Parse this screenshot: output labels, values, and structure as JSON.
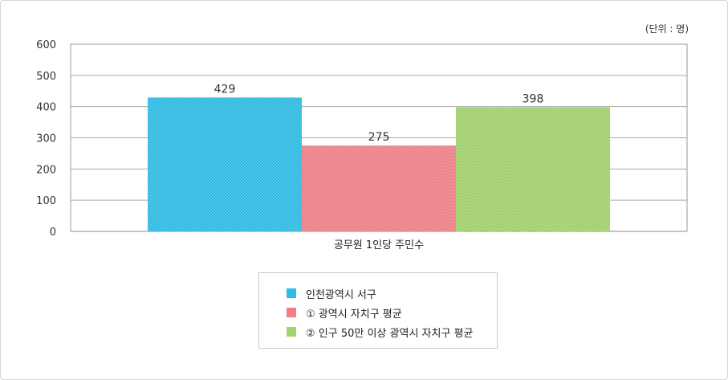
{
  "chart_data": {
    "type": "bar",
    "unit_note": "(단위 : 명)",
    "categories": [
      "공무원 1인당 주민수"
    ],
    "series": [
      {
        "name": "인천광역시 서구",
        "values": [
          429
        ],
        "color": "#2bbde6"
      },
      {
        "name": "① 광역시 자치구 평균",
        "values": [
          275
        ],
        "color": "#f07f86"
      },
      {
        "name": "② 인구 50만 이상 광역시 자치구 평균",
        "values": [
          398
        ],
        "color": "#a3d36b"
      }
    ],
    "ylim": [
      0,
      600
    ],
    "yticks": [
      0,
      100,
      200,
      300,
      400,
      500,
      600
    ],
    "grid": true,
    "legend_position": "bottom"
  }
}
